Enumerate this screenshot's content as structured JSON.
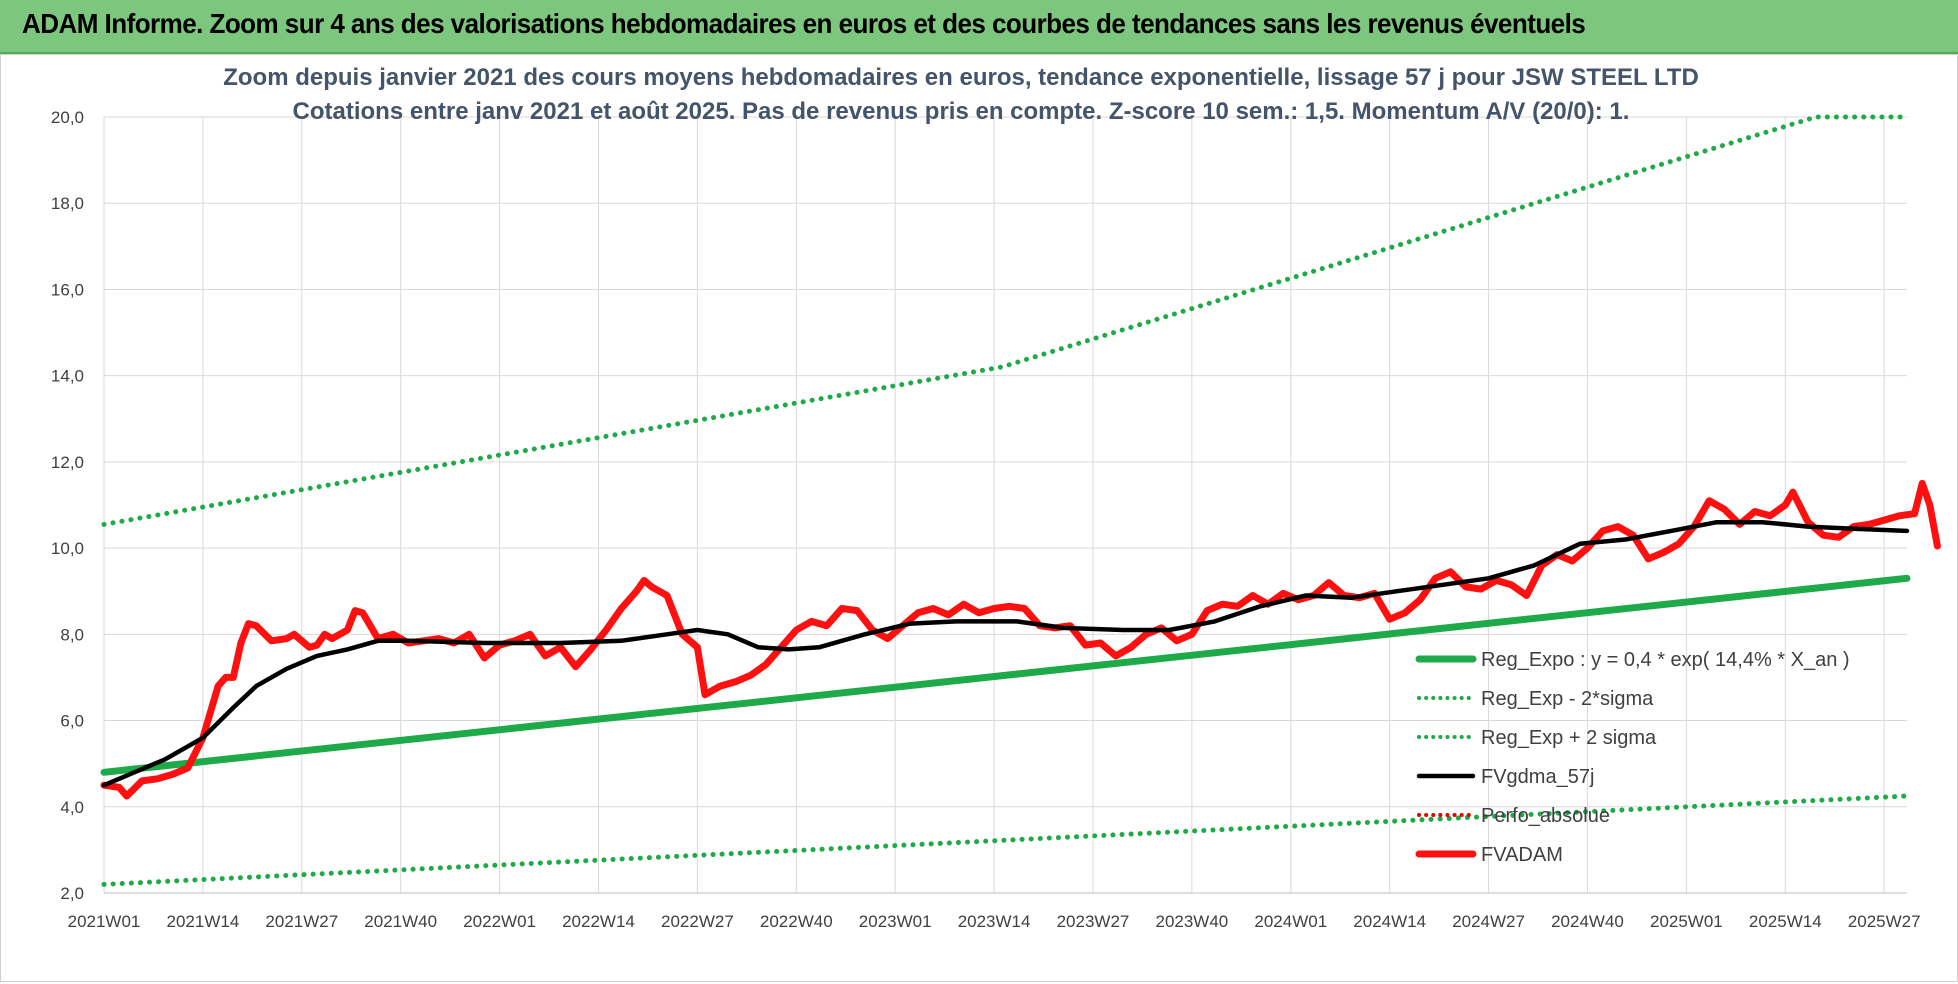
{
  "header": {
    "title": "ADAM Informe. Zoom sur 4 ans des valorisations hebdomadaires en euros et des courbes de tendances sans les revenus éventuels"
  },
  "colors": {
    "header_bg": "#7dc67d",
    "reg_expo": "#1faa4a",
    "sigma": "#1faa4a",
    "fvgdma": "#000000",
    "perfo": "#e60000",
    "fvadam": "#ff1010"
  },
  "chart_data": {
    "type": "line",
    "title": "Zoom depuis janvier 2021 des cours moyens hebdomadaires en euros, tendance exponentielle, lissage 57 j pour JSW STEEL LTD",
    "subtitle": "Cotations entre janv 2021 et août 2025. Pas de revenus pris en compte. Z-score 10 sem.: 1,5. Momentum A/V (20/0): 1.",
    "ylim": [
      2,
      20
    ],
    "yticks": [
      "2,0",
      "4,0",
      "6,0",
      "8,0",
      "10,0",
      "12,0",
      "14,0",
      "16,0",
      "18,0",
      "20,0"
    ],
    "xticks": [
      "2021W01",
      "2021W14",
      "2021W27",
      "2021W40",
      "2022W01",
      "2022W14",
      "2022W27",
      "2022W40",
      "2023W01",
      "2023W14",
      "2023W27",
      "2023W40",
      "2024W01",
      "2024W14",
      "2024W27",
      "2024W40",
      "2025W01",
      "2025W14",
      "2025W27"
    ],
    "x_range_weeks": [
      0,
      237
    ],
    "grid": true,
    "legend_position": "bottom-right",
    "series": [
      {
        "name": "Reg_Expo : y = 0,4 * exp( 14,4% *  X_an )",
        "style": "solid-thick",
        "color": "#1faa4a",
        "points": [
          [
            0,
            4.8
          ],
          [
            237,
            9.3
          ]
        ]
      },
      {
        "name": "Reg_Exp - 2*sigma",
        "style": "dotted",
        "color": "#1faa4a",
        "points": [
          [
            0,
            2.2
          ],
          [
            237,
            4.25
          ]
        ]
      },
      {
        "name": "Reg_Exp + 2 sigma",
        "style": "dotted",
        "color": "#1faa4a",
        "points": [
          [
            0,
            10.55
          ],
          [
            118,
            14.2
          ],
          [
            225,
            20.0
          ],
          [
            237,
            20.0
          ]
        ]
      },
      {
        "name": "FVgdma_57j",
        "style": "solid",
        "color": "#000000",
        "points": [
          [
            0,
            4.5
          ],
          [
            8,
            5.1
          ],
          [
            13,
            5.6
          ],
          [
            17,
            6.3
          ],
          [
            20,
            6.8
          ],
          [
            24,
            7.2
          ],
          [
            28,
            7.5
          ],
          [
            32,
            7.65
          ],
          [
            36,
            7.85
          ],
          [
            40,
            7.85
          ],
          [
            50,
            7.8
          ],
          [
            60,
            7.8
          ],
          [
            68,
            7.85
          ],
          [
            74,
            8.0
          ],
          [
            78,
            8.1
          ],
          [
            82,
            8.0
          ],
          [
            86,
            7.7
          ],
          [
            90,
            7.65
          ],
          [
            94,
            7.7
          ],
          [
            100,
            8.0
          ],
          [
            106,
            8.25
          ],
          [
            112,
            8.3
          ],
          [
            120,
            8.3
          ],
          [
            126,
            8.15
          ],
          [
            134,
            8.1
          ],
          [
            140,
            8.1
          ],
          [
            146,
            8.3
          ],
          [
            152,
            8.65
          ],
          [
            158,
            8.9
          ],
          [
            164,
            8.85
          ],
          [
            170,
            9.0
          ],
          [
            176,
            9.15
          ],
          [
            182,
            9.3
          ],
          [
            188,
            9.6
          ],
          [
            194,
            10.1
          ],
          [
            200,
            10.2
          ],
          [
            206,
            10.4
          ],
          [
            212,
            10.6
          ],
          [
            218,
            10.6
          ],
          [
            224,
            10.5
          ],
          [
            230,
            10.45
          ],
          [
            237,
            10.4
          ]
        ]
      },
      {
        "name": "Perfo_absolue",
        "style": "dotted",
        "color": "#e60000",
        "points": []
      },
      {
        "name": "FVADAM",
        "style": "solid-thick",
        "color": "#ff1010",
        "points": [
          [
            0,
            4.5
          ],
          [
            2,
            4.45
          ],
          [
            3,
            4.25
          ],
          [
            5,
            4.6
          ],
          [
            7,
            4.65
          ],
          [
            9,
            4.75
          ],
          [
            11,
            4.9
          ],
          [
            13,
            5.6
          ],
          [
            15,
            6.8
          ],
          [
            16,
            7.0
          ],
          [
            17,
            7.0
          ],
          [
            18,
            7.8
          ],
          [
            19,
            8.25
          ],
          [
            20,
            8.2
          ],
          [
            22,
            7.85
          ],
          [
            24,
            7.9
          ],
          [
            25,
            8.0
          ],
          [
            27,
            7.7
          ],
          [
            28,
            7.75
          ],
          [
            29,
            8.0
          ],
          [
            30,
            7.9
          ],
          [
            32,
            8.1
          ],
          [
            33,
            8.55
          ],
          [
            34,
            8.5
          ],
          [
            36,
            7.9
          ],
          [
            38,
            8.0
          ],
          [
            40,
            7.8
          ],
          [
            42,
            7.85
          ],
          [
            44,
            7.9
          ],
          [
            46,
            7.8
          ],
          [
            48,
            8.0
          ],
          [
            50,
            7.45
          ],
          [
            52,
            7.75
          ],
          [
            54,
            7.85
          ],
          [
            56,
            8.0
          ],
          [
            58,
            7.5
          ],
          [
            60,
            7.7
          ],
          [
            62,
            7.25
          ],
          [
            64,
            7.65
          ],
          [
            66,
            8.1
          ],
          [
            68,
            8.6
          ],
          [
            70,
            9.0
          ],
          [
            71,
            9.25
          ],
          [
            72,
            9.1
          ],
          [
            74,
            8.9
          ],
          [
            76,
            8.0
          ],
          [
            78,
            7.7
          ],
          [
            79,
            6.6
          ],
          [
            81,
            6.8
          ],
          [
            83,
            6.9
          ],
          [
            85,
            7.05
          ],
          [
            87,
            7.3
          ],
          [
            89,
            7.7
          ],
          [
            91,
            8.1
          ],
          [
            93,
            8.3
          ],
          [
            95,
            8.2
          ],
          [
            97,
            8.6
          ],
          [
            99,
            8.55
          ],
          [
            101,
            8.1
          ],
          [
            103,
            7.9
          ],
          [
            105,
            8.2
          ],
          [
            107,
            8.5
          ],
          [
            109,
            8.6
          ],
          [
            111,
            8.45
          ],
          [
            113,
            8.7
          ],
          [
            115,
            8.5
          ],
          [
            117,
            8.6
          ],
          [
            119,
            8.65
          ],
          [
            121,
            8.6
          ],
          [
            123,
            8.2
          ],
          [
            125,
            8.15
          ],
          [
            127,
            8.2
          ],
          [
            129,
            7.75
          ],
          [
            131,
            7.8
          ],
          [
            133,
            7.5
          ],
          [
            135,
            7.7
          ],
          [
            137,
            8.0
          ],
          [
            139,
            8.15
          ],
          [
            141,
            7.85
          ],
          [
            143,
            8.0
          ],
          [
            145,
            8.55
          ],
          [
            147,
            8.7
          ],
          [
            149,
            8.65
          ],
          [
            151,
            8.9
          ],
          [
            153,
            8.7
          ],
          [
            155,
            8.95
          ],
          [
            157,
            8.8
          ],
          [
            159,
            8.9
          ],
          [
            161,
            9.2
          ],
          [
            163,
            8.9
          ],
          [
            165,
            8.85
          ],
          [
            167,
            8.95
          ],
          [
            169,
            8.35
          ],
          [
            171,
            8.5
          ],
          [
            173,
            8.8
          ],
          [
            175,
            9.3
          ],
          [
            177,
            9.45
          ],
          [
            179,
            9.1
          ],
          [
            181,
            9.05
          ],
          [
            183,
            9.25
          ],
          [
            185,
            9.15
          ],
          [
            187,
            8.9
          ],
          [
            189,
            9.6
          ],
          [
            191,
            9.85
          ],
          [
            193,
            9.7
          ],
          [
            195,
            10.0
          ],
          [
            197,
            10.4
          ],
          [
            199,
            10.5
          ],
          [
            201,
            10.3
          ],
          [
            203,
            9.75
          ],
          [
            205,
            9.9
          ],
          [
            207,
            10.1
          ],
          [
            209,
            10.5
          ],
          [
            211,
            11.1
          ],
          [
            213,
            10.9
          ],
          [
            215,
            10.55
          ],
          [
            217,
            10.85
          ],
          [
            219,
            10.75
          ],
          [
            221,
            11.0
          ],
          [
            222,
            11.3
          ],
          [
            224,
            10.6
          ],
          [
            226,
            10.3
          ],
          [
            228,
            10.25
          ],
          [
            230,
            10.5
          ],
          [
            232,
            10.55
          ],
          [
            234,
            10.65
          ],
          [
            236,
            10.75
          ],
          [
            238,
            10.8
          ],
          [
            239,
            11.5
          ],
          [
            240,
            11.0
          ],
          [
            241,
            10.05
          ]
        ]
      }
    ]
  }
}
